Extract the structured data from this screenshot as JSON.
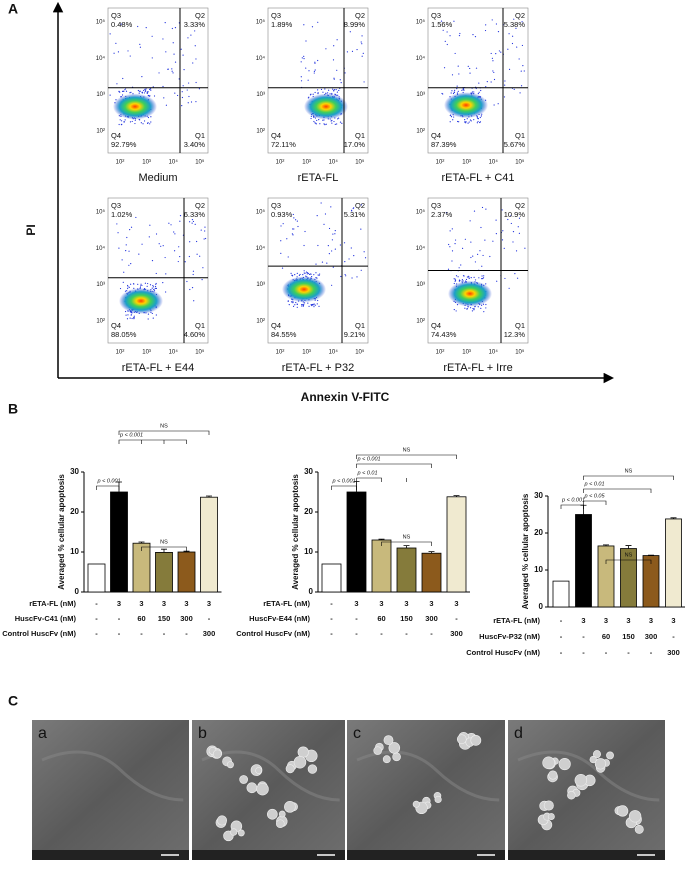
{
  "panel_a": {
    "label": "A",
    "y_axis_label": "PI",
    "x_axis_label": "Annexin V-FITC",
    "quadrant_labels": [
      "Q1",
      "Q2",
      "Q3",
      "Q4"
    ],
    "xticks": [
      "10²",
      "10³",
      "10⁴",
      "10⁵"
    ],
    "yticks": [
      "10²",
      "10³",
      "10⁴",
      "10⁵"
    ],
    "plots": [
      {
        "title": "Medium",
        "q1": "3.40%",
        "q2": "3.33%",
        "q3": "0.48%",
        "q4": "92.79%"
      },
      {
        "title": "rETA-FL",
        "q1": "17.0%",
        "q2": "8.99%",
        "q3": "1.89%",
        "q4": "72.11%"
      },
      {
        "title": "rETA-FL + C41",
        "q1": "5.67%",
        "q2": "5.38%",
        "q3": "1.56%",
        "q4": "87.39%"
      },
      {
        "title": "rETA-FL + E44",
        "q1": "4.60%",
        "q2": "6.33%",
        "q3": "1.02%",
        "q4": "88.05%"
      },
      {
        "title": "rETA-FL + P32",
        "q1": "9.21%",
        "q2": "5.31%",
        "q3": "0.93%",
        "q4": "84.55%"
      },
      {
        "title": "rETA-FL + Irre",
        "q1": "12.3%",
        "q2": "10.9%",
        "q3": "2.37%",
        "q4": "74.43%"
      }
    ]
  },
  "panel_b_label": "B",
  "chart_data": [
    {
      "type": "bar",
      "y_label": "Averaged % cellular apoptosis",
      "values": [
        7,
        25,
        12.2,
        9.9,
        10,
        23.7
      ],
      "errors": [
        0,
        2.5,
        0.3,
        0.8,
        0.2,
        0.3
      ],
      "colors": [
        "#ffffff",
        "#000000",
        "#c8b97c",
        "#857b3b",
        "#8c5a1c",
        "#f0ead0"
      ],
      "ylim": [
        0,
        30
      ],
      "yticks": [
        0,
        10,
        20,
        30
      ],
      "significance": [
        "p < 0.001",
        "p < 0.001",
        "NS",
        "NS"
      ],
      "table": {
        "row_labels": [
          "rETA-FL (nM)",
          "HuscFv-C41 (nM)",
          "Control HuscFv (nM)"
        ],
        "rows": [
          [
            "-",
            "3",
            "3",
            "3",
            "3",
            "3"
          ],
          [
            "-",
            "-",
            "60",
            "150",
            "300",
            "-"
          ],
          [
            "-",
            "-",
            "-",
            "-",
            "-",
            "300"
          ]
        ]
      }
    },
    {
      "type": "bar",
      "y_label": "Averaged % cellular apoptosis",
      "values": [
        7,
        25,
        13,
        11,
        9.7,
        23.8
      ],
      "errors": [
        0,
        2.6,
        0.2,
        0.6,
        0.4,
        0.3
      ],
      "colors": [
        "#ffffff",
        "#000000",
        "#c8b97c",
        "#857b3b",
        "#8c5a1c",
        "#f0ead0"
      ],
      "ylim": [
        0,
        30
      ],
      "yticks": [
        0,
        10,
        20,
        30
      ],
      "significance": [
        "p < 0.001",
        "p < 0.01",
        "p < 0.001",
        "NS",
        "NS"
      ],
      "table": {
        "row_labels": [
          "rETA-FL (nM)",
          "HuscFv-E44 (nM)",
          "Control HuscFv (nM)"
        ],
        "rows": [
          [
            "-",
            "3",
            "3",
            "3",
            "3",
            "3"
          ],
          [
            "-",
            "-",
            "60",
            "150",
            "300",
            "-"
          ],
          [
            "-",
            "-",
            "-",
            "-",
            "-",
            "300"
          ]
        ]
      }
    },
    {
      "type": "bar",
      "y_label": "Averaged % cellular apoptosis",
      "values": [
        7,
        25,
        16.5,
        15.8,
        13.9,
        23.8
      ],
      "errors": [
        0,
        2.5,
        0.3,
        0.8,
        0.1,
        0.3
      ],
      "colors": [
        "#ffffff",
        "#000000",
        "#c8b97c",
        "#857b3b",
        "#8c5a1c",
        "#f0ead0"
      ],
      "ylim": [
        0,
        30
      ],
      "yticks": [
        0,
        10,
        20,
        30
      ],
      "significance": [
        "p < 0.001",
        "p < 0.05",
        "p < 0.01",
        "NS",
        "NS"
      ],
      "table": {
        "row_labels": [
          "rETA-FL (nM)",
          "HuscFv-P32 (nM)",
          "Control HuscFv (nM)"
        ],
        "rows": [
          [
            "-",
            "3",
            "3",
            "3",
            "3",
            "3"
          ],
          [
            "-",
            "-",
            "60",
            "150",
            "300",
            "-"
          ],
          [
            "-",
            "-",
            "-",
            "-",
            "-",
            "300"
          ]
        ]
      }
    }
  ],
  "panel_c": {
    "label": "C",
    "images": [
      "a",
      "b",
      "c",
      "d"
    ]
  }
}
